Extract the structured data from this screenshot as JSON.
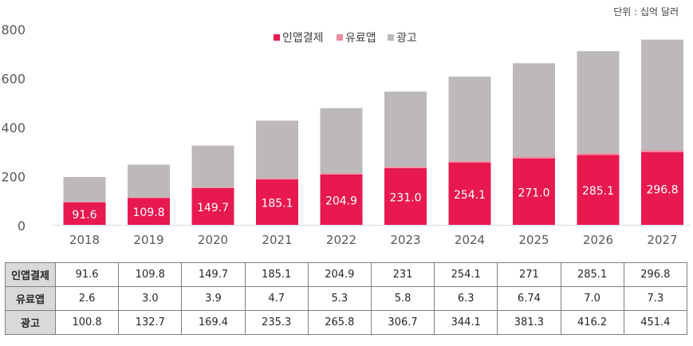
{
  "unit_label": "단위 : 십억 달러",
  "colors": {
    "inapp": "#e8194f",
    "paid": "#f08c9f",
    "ad": "#bcb8bc"
  },
  "chart_data": {
    "type": "bar",
    "stacked": true,
    "categories": [
      "2018",
      "2019",
      "2020",
      "2021",
      "2022",
      "2023",
      "2024",
      "2025",
      "2026",
      "2027"
    ],
    "series": [
      {
        "name": "인앱결제",
        "values": [
          91.6,
          109.8,
          149.7,
          185.1,
          204.9,
          231.0,
          254.1,
          271.0,
          285.1,
          296.8
        ],
        "labels": [
          "91.6",
          "109.8",
          "149.7",
          "185.1",
          "204.9",
          "231.0",
          "254.1",
          "271.0",
          "285.1",
          "296.8"
        ]
      },
      {
        "name": "유료앱",
        "values": [
          2.6,
          3.0,
          3.9,
          4.7,
          5.3,
          5.8,
          6.3,
          6.74,
          7.0,
          7.3
        ]
      },
      {
        "name": "광고",
        "values": [
          100.8,
          132.7,
          169.4,
          235.3,
          265.8,
          306.7,
          344.1,
          381.3,
          416.2,
          451.4
        ]
      }
    ],
    "yticks": [
      "0",
      "200",
      "400",
      "600",
      "800"
    ],
    "ylim": [
      0,
      800
    ],
    "legend": "top-center",
    "grid": false
  },
  "table": {
    "rows": [
      {
        "label": "인앱결제",
        "cells": [
          "91.6",
          "109.8",
          "149.7",
          "185.1",
          "204.9",
          "231",
          "254.1",
          "271",
          "285.1",
          "296.8"
        ]
      },
      {
        "label": "유료앱",
        "cells": [
          "2.6",
          "3.0",
          "3.9",
          "4.7",
          "5.3",
          "5.8",
          "6.3",
          "6.74",
          "7.0",
          "7.3"
        ]
      },
      {
        "label": "광고",
        "cells": [
          "100.8",
          "132.7",
          "169.4",
          "235.3",
          "265.8",
          "306.7",
          "344.1",
          "381.3",
          "416.2",
          "451.4"
        ]
      }
    ]
  }
}
